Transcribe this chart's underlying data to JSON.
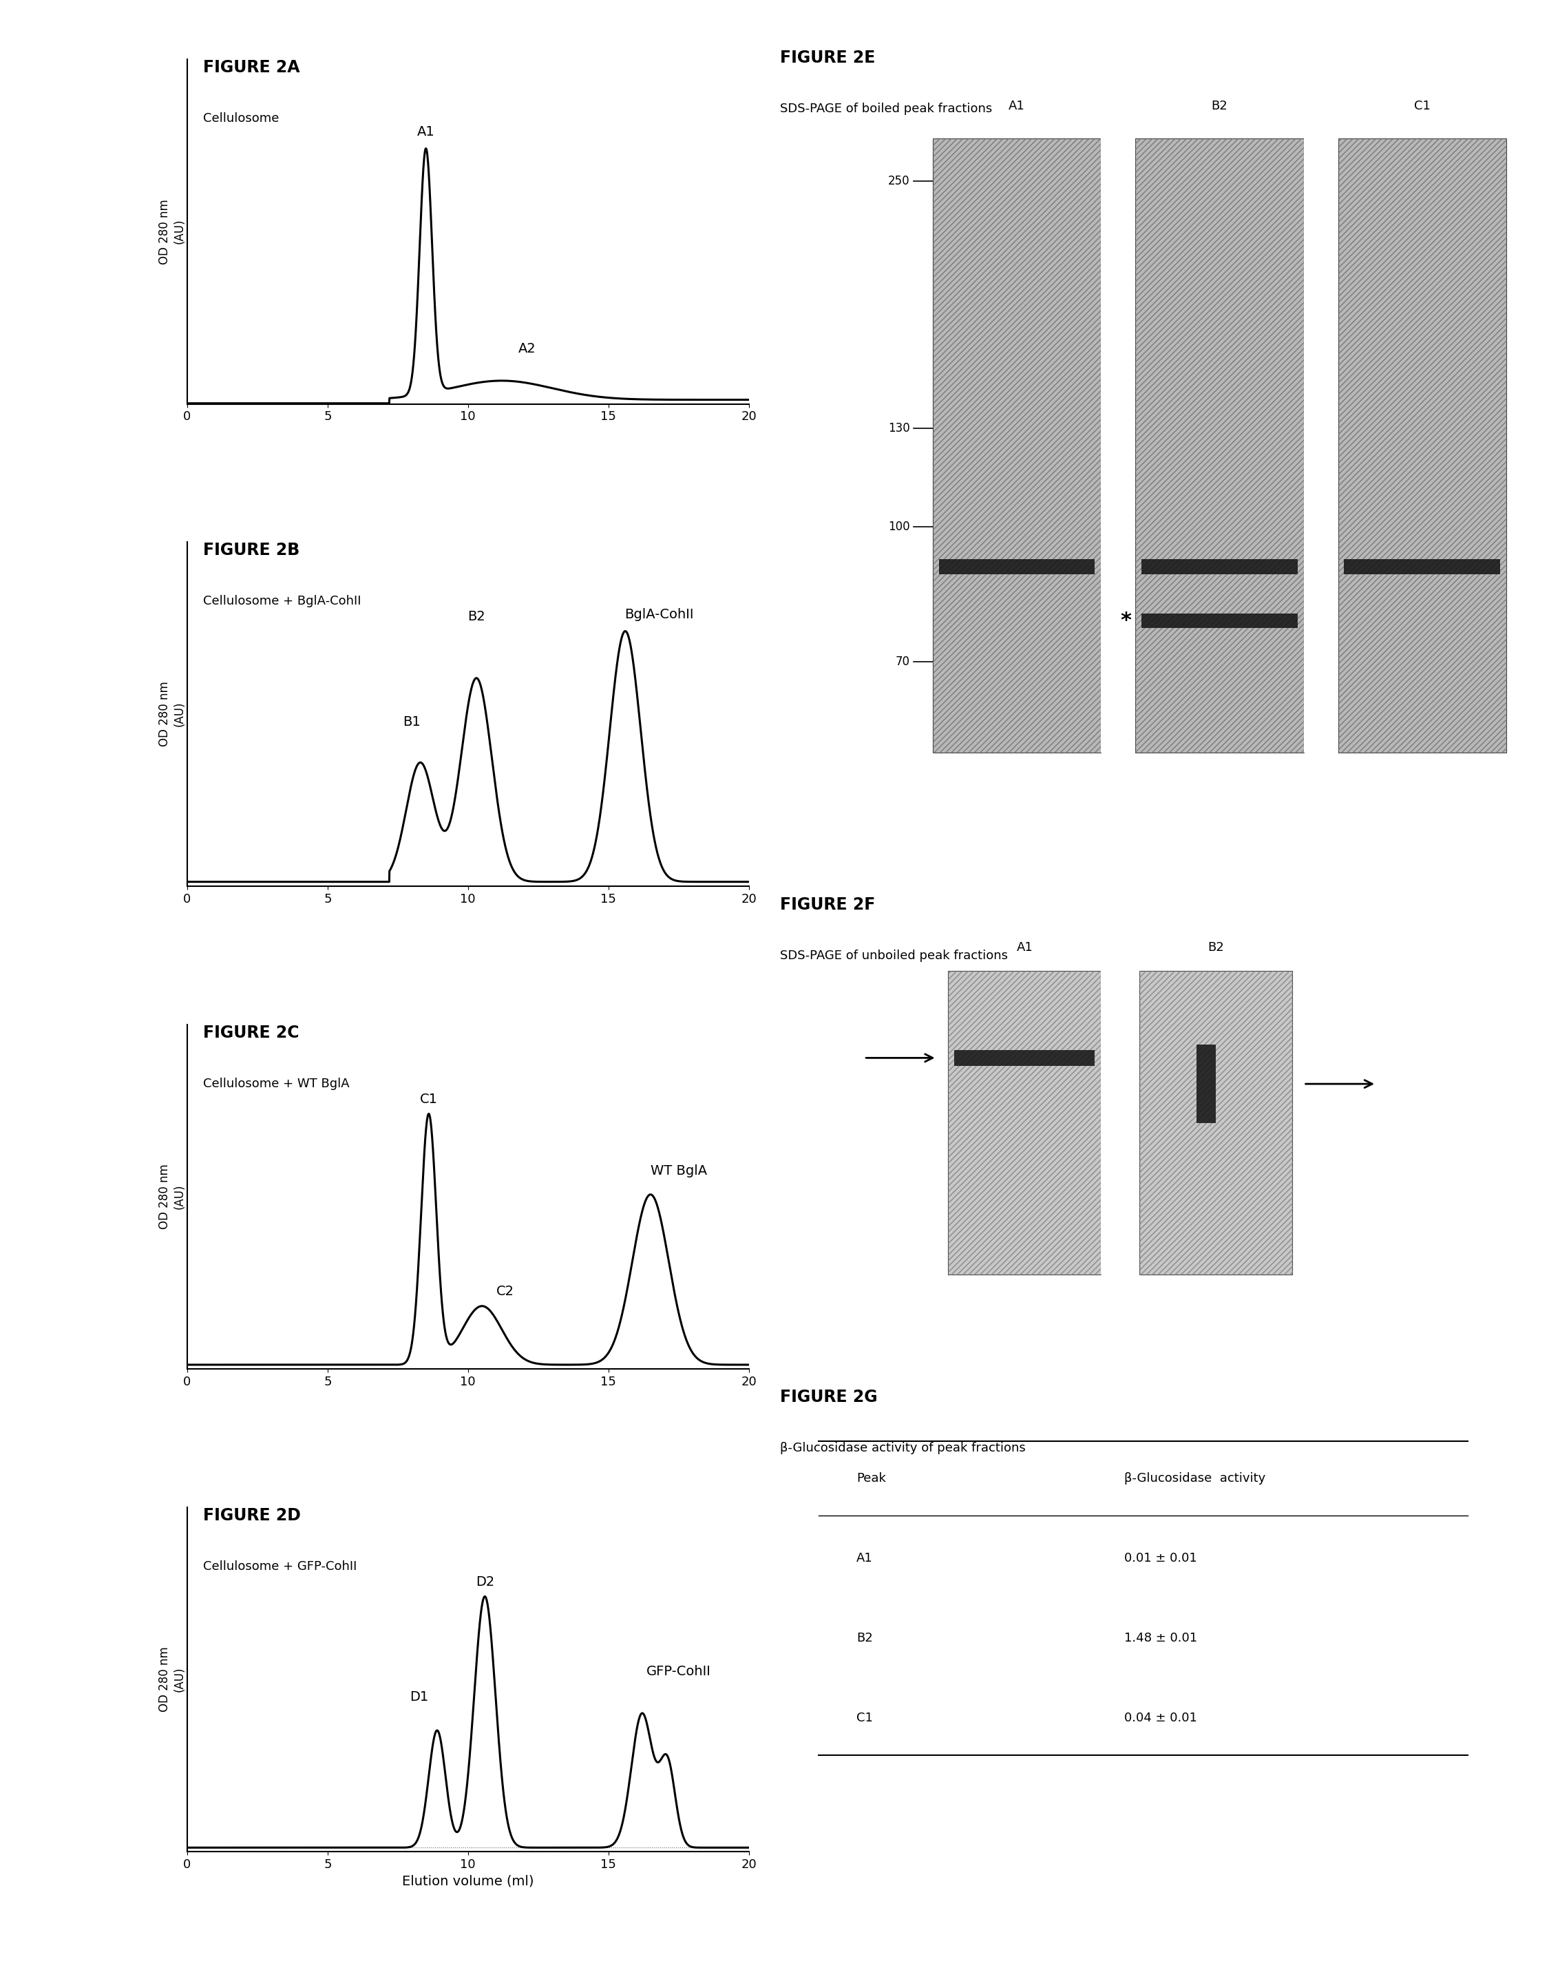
{
  "fig_width": 22.66,
  "fig_height": 28.61,
  "figA_title": "FIGURE 2A",
  "figA_subtitle": "Cellulosome",
  "figB_title": "FIGURE 2B",
  "figB_subtitle": "Cellulosome + BglA-CohII",
  "figC_title": "FIGURE 2C",
  "figC_subtitle": "Cellulosome + WT BglA",
  "figD_title": "FIGURE 2D",
  "figD_subtitle": "Cellulosome + GFP-CohII",
  "figE_title": "FIGURE 2E",
  "figE_subtitle": "SDS-PAGE of boiled peak fractions",
  "figF_title": "FIGURE 2F",
  "figF_subtitle": "SDS-PAGE of unboiled peak fractions",
  "figG_title": "FIGURE 2G",
  "figG_subtitle": "β-Glucosidase activity of peak fractions",
  "ylabel": "OD 280 nm\n(AU)",
  "xlabel": "Elution volume (ml)",
  "table_data": [
    [
      "A1",
      "0.01 ± 0.01"
    ],
    [
      "B2",
      "1.48 ± 0.01"
    ],
    [
      "C1",
      "0.04 ± 0.01"
    ]
  ],
  "table_header": [
    "Peak",
    "β-Glucosidase  activity"
  ]
}
